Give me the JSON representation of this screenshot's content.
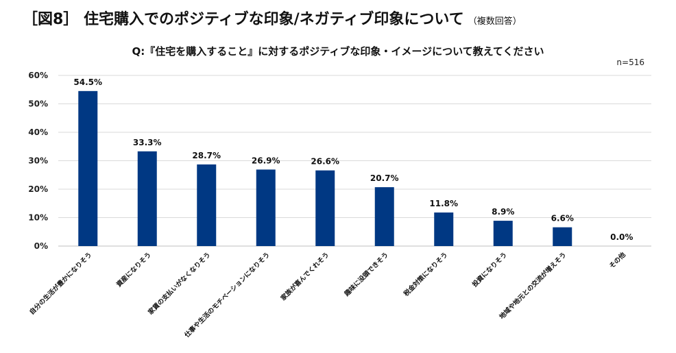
{
  "figure": {
    "title": "［図8］ 住宅購入でのポジティブな印象/ネガティブ印象について",
    "subtitle": "（複数回答）"
  },
  "chart_data": {
    "type": "bar",
    "title": "Q:『住宅を購入すること』に対するポジティブな印象・イメージについて教えてください",
    "sample": "n=516",
    "categories": [
      "自分の生活が豊かになりそう",
      "資産になりそう",
      "家賃の支払いがなくなりそう",
      "仕事や生活のモチベーションになりそう",
      "家族が喜んでくれそう",
      "趣味に没頭できそう",
      "税金対策になりそう",
      "投資になりそう",
      "地域や地元との交流が増えそう",
      "その他"
    ],
    "values": [
      54.5,
      33.3,
      28.7,
      26.9,
      26.6,
      20.7,
      11.8,
      8.9,
      6.6,
      0.0
    ],
    "data_labels": [
      "54.5%",
      "33.3%",
      "28.7%",
      "26.9%",
      "26.6%",
      "20.7%",
      "11.8%",
      "8.9%",
      "6.6%",
      "0.0%"
    ],
    "yticks": [
      0,
      10,
      20,
      30,
      40,
      50,
      60
    ],
    "ytick_labels": [
      "0%",
      "10%",
      "20%",
      "30%",
      "40%",
      "50%",
      "60%"
    ],
    "ylim": [
      0,
      60
    ],
    "xlabel": "",
    "ylabel": "",
    "grid": true,
    "bar_color": "#003883",
    "grid_color": "#d9d9d9"
  }
}
